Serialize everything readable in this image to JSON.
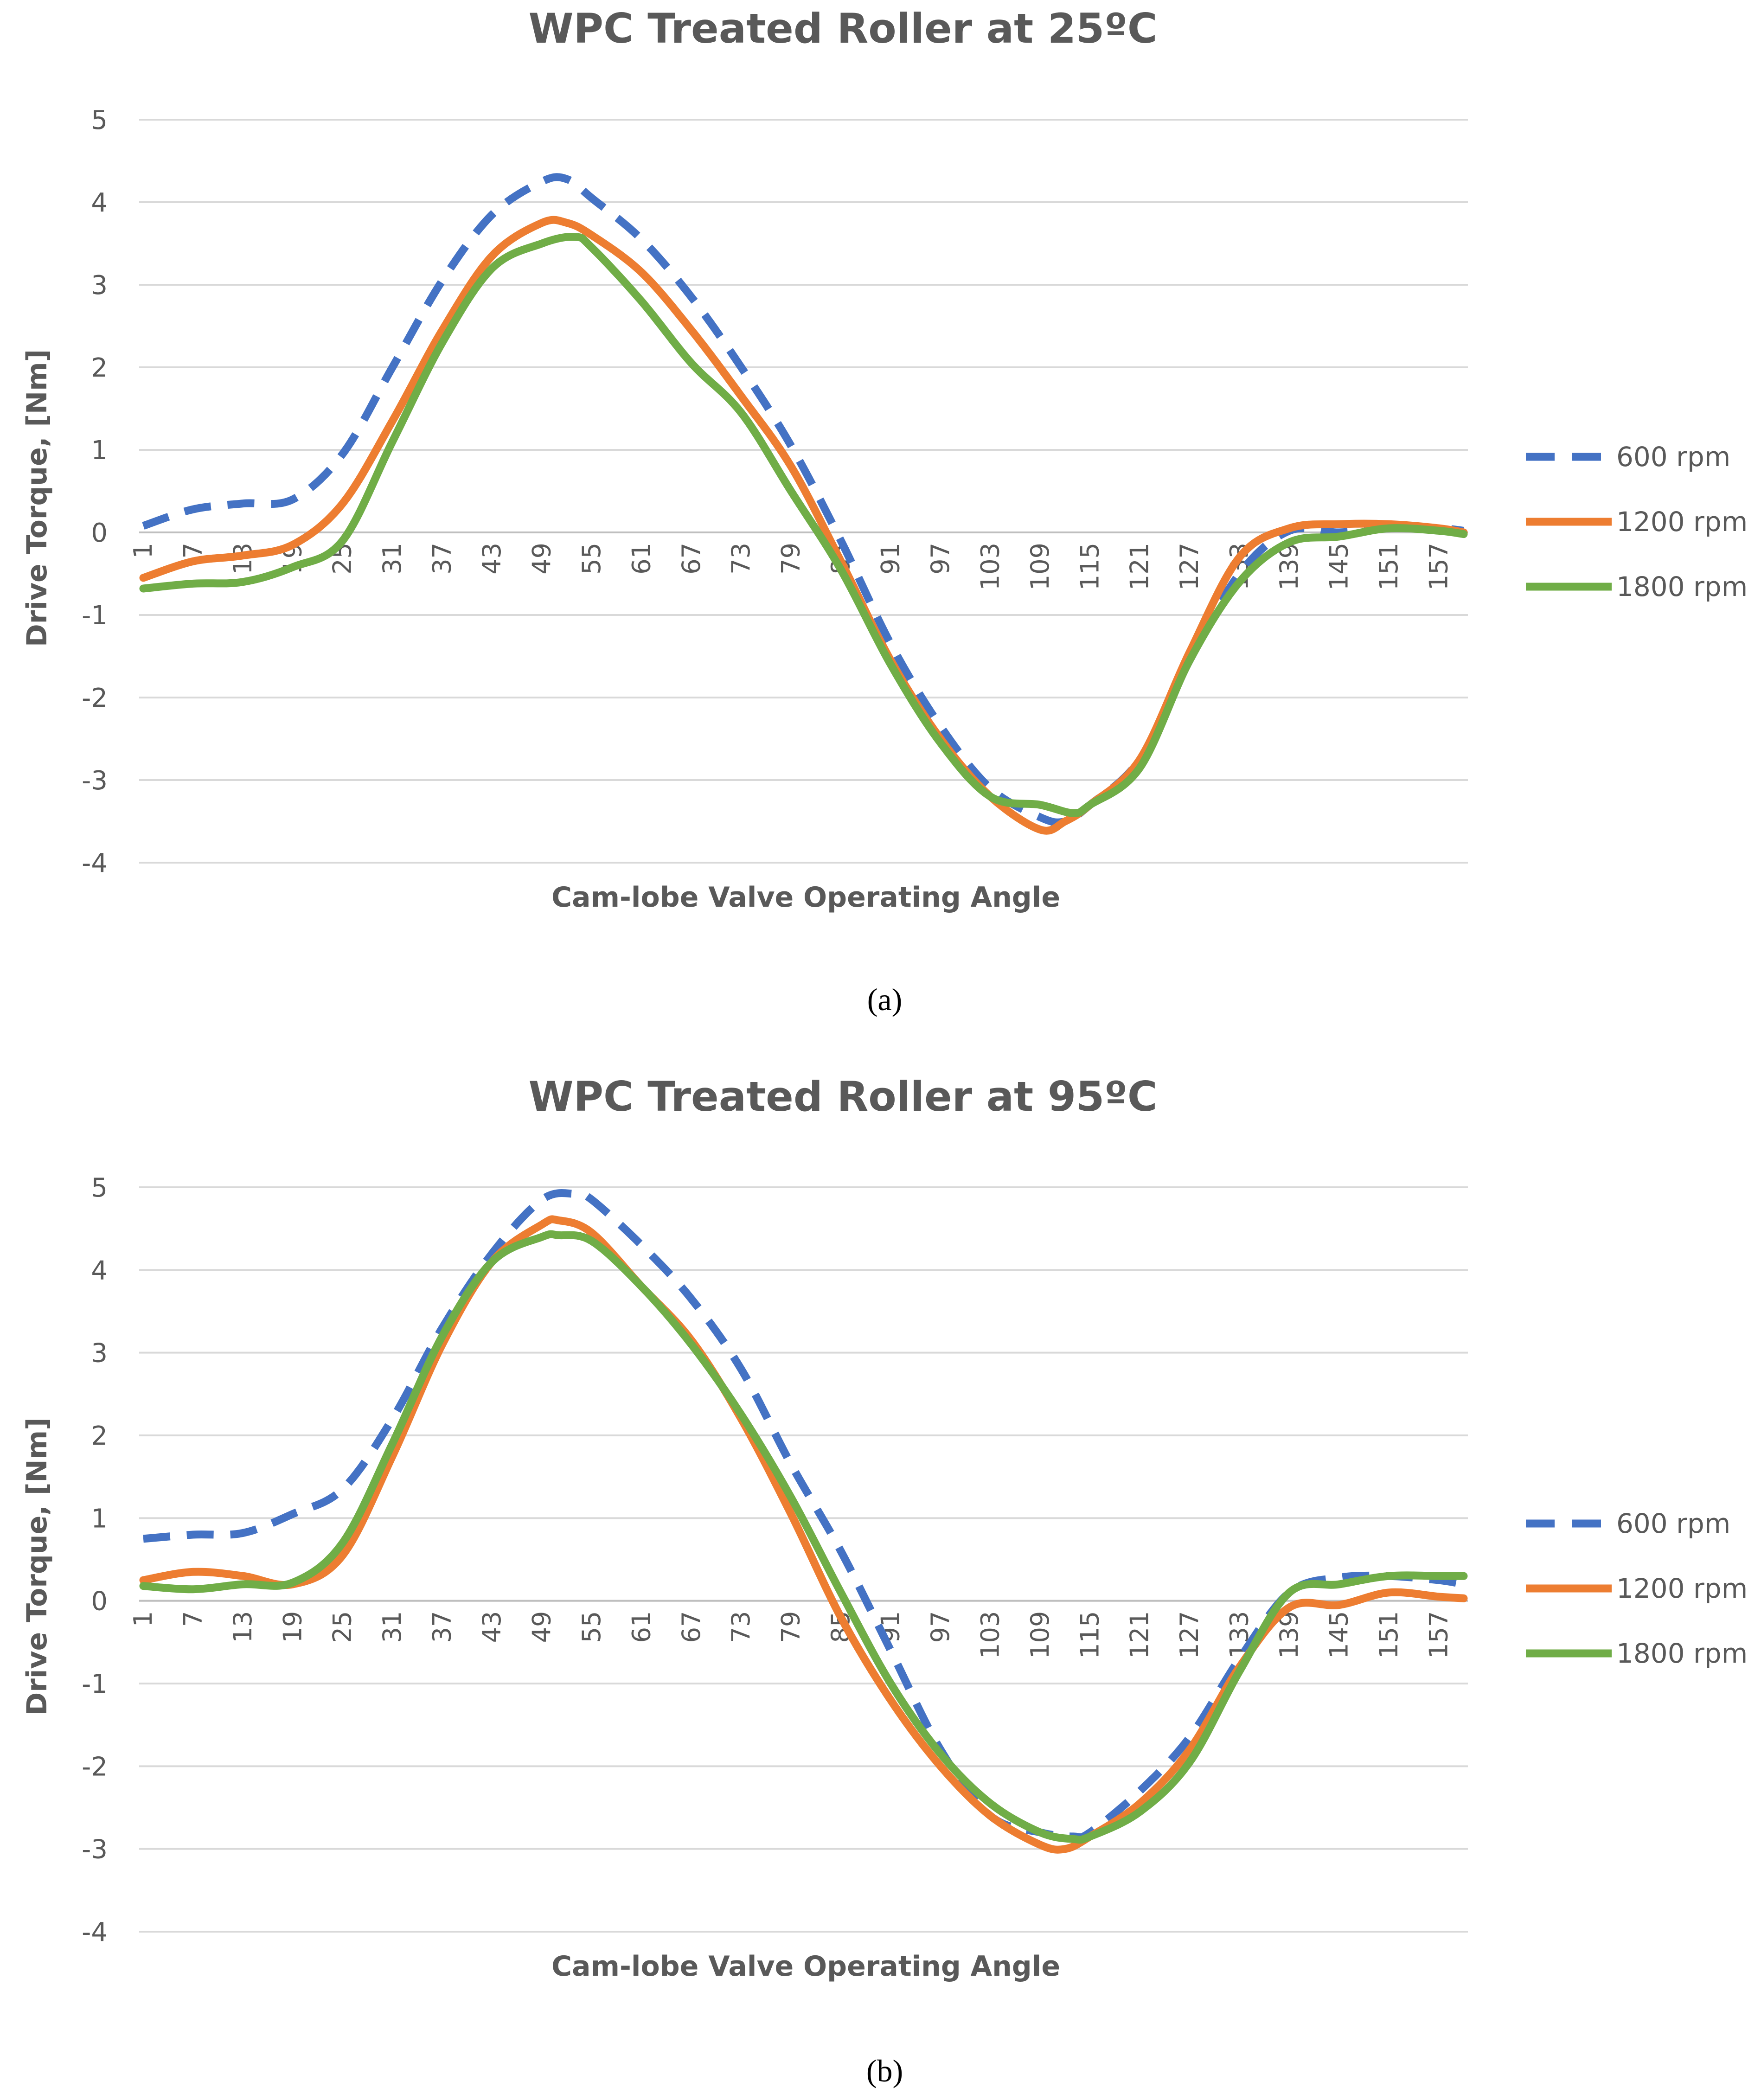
{
  "chart_data": [
    {
      "type": "line",
      "title": "WPC Treated Roller at 25ºC",
      "xlabel": "Cam-lobe Valve Operating Angle",
      "ylabel": "Drive Torque, [Nm]",
      "ylim": [
        -4,
        5
      ],
      "yticks": [
        "5",
        "4",
        "3",
        "2",
        "1",
        "0",
        "-1",
        "-2",
        "-3",
        "-4"
      ],
      "xlim": [
        1,
        160
      ],
      "xtick_labels": [
        "1",
        "7",
        "13",
        "19",
        "25",
        "31",
        "37",
        "43",
        "49",
        "55",
        "61",
        "67",
        "73",
        "79",
        "85",
        "91",
        "97",
        "103",
        "109",
        "115",
        "121",
        "127",
        "133",
        "139",
        "145",
        "151",
        "157"
      ],
      "grid": true,
      "legend": "right",
      "series": [
        {
          "name": "600 rpm",
          "color": "#4472C4",
          "style": "dashed",
          "x": [
            1,
            7,
            13,
            19,
            25,
            31,
            37,
            43,
            49,
            52,
            55,
            61,
            67,
            73,
            79,
            85,
            91,
            97,
            103,
            109,
            112,
            115,
            121,
            127,
            133,
            139,
            145,
            151,
            157,
            160
          ],
          "y": [
            0.08,
            0.28,
            0.35,
            0.4,
            0.95,
            2.0,
            3.05,
            3.85,
            4.25,
            4.28,
            4.05,
            3.55,
            2.85,
            2.0,
            1.05,
            -0.1,
            -1.35,
            -2.35,
            -3.1,
            -3.45,
            -3.5,
            -3.3,
            -2.75,
            -1.55,
            -0.5,
            0.02,
            0.0,
            0.05,
            0.05,
            0.02
          ]
        },
        {
          "name": "1200 rpm",
          "color": "#ED7D31",
          "style": "solid",
          "x": [
            1,
            7,
            13,
            19,
            25,
            31,
            37,
            43,
            49,
            52,
            55,
            61,
            67,
            73,
            79,
            85,
            91,
            97,
            103,
            109,
            112,
            115,
            121,
            127,
            133,
            139,
            145,
            151,
            157,
            160
          ],
          "y": [
            -0.55,
            -0.35,
            -0.28,
            -0.15,
            0.35,
            1.35,
            2.45,
            3.35,
            3.75,
            3.75,
            3.6,
            3.15,
            2.45,
            1.65,
            0.8,
            -0.35,
            -1.55,
            -2.5,
            -3.2,
            -3.6,
            -3.5,
            -3.3,
            -2.75,
            -1.45,
            -0.3,
            0.05,
            0.1,
            0.1,
            0.05,
            0.0
          ]
        },
        {
          "name": "1800 rpm",
          "color": "#70AD47",
          "style": "solid",
          "x": [
            1,
            7,
            13,
            19,
            25,
            31,
            37,
            43,
            49,
            53,
            55,
            61,
            67,
            73,
            79,
            85,
            91,
            97,
            103,
            109,
            113,
            115,
            121,
            127,
            133,
            139,
            145,
            151,
            157,
            160
          ],
          "y": [
            -0.68,
            -0.62,
            -0.6,
            -0.42,
            -0.1,
            1.1,
            2.3,
            3.2,
            3.5,
            3.58,
            3.45,
            2.8,
            2.05,
            1.45,
            0.5,
            -0.45,
            -1.6,
            -2.55,
            -3.2,
            -3.3,
            -3.4,
            -3.3,
            -2.85,
            -1.55,
            -0.6,
            -0.12,
            -0.05,
            0.05,
            0.02,
            -0.02
          ]
        }
      ]
    },
    {
      "type": "line",
      "title": "WPC Treated Roller at 95ºC",
      "xlabel": "Cam-lobe Valve Operating Angle",
      "ylabel": "Drive Torque, [Nm]",
      "ylim": [
        -4,
        5
      ],
      "yticks": [
        "5",
        "4",
        "3",
        "2",
        "1",
        "0",
        "-1",
        "-2",
        "-3",
        "-4"
      ],
      "xlim": [
        1,
        160
      ],
      "xtick_labels": [
        "1",
        "7",
        "13",
        "19",
        "25",
        "31",
        "37",
        "43",
        "49",
        "55",
        "61",
        "67",
        "73",
        "79",
        "85",
        "91",
        "97",
        "103",
        "109",
        "115",
        "121",
        "127",
        "133",
        "139",
        "145",
        "151",
        "157"
      ],
      "grid": true,
      "legend": "right",
      "series": [
        {
          "name": "600 rpm",
          "color": "#4472C4",
          "style": "dashed",
          "x": [
            1,
            7,
            13,
            19,
            25,
            31,
            37,
            43,
            49,
            53,
            55,
            61,
            67,
            73,
            79,
            85,
            91,
            97,
            103,
            109,
            113,
            115,
            121,
            127,
            133,
            139,
            145,
            151,
            157,
            160
          ],
          "y": [
            0.75,
            0.8,
            0.82,
            1.05,
            1.35,
            2.2,
            3.3,
            4.2,
            4.85,
            4.92,
            4.85,
            4.3,
            3.65,
            2.8,
            1.65,
            0.6,
            -0.6,
            -1.8,
            -2.6,
            -2.8,
            -2.85,
            -2.8,
            -2.3,
            -1.65,
            -0.7,
            0.1,
            0.28,
            0.3,
            0.25,
            0.2
          ]
        },
        {
          "name": "1200 rpm",
          "color": "#ED7D31",
          "style": "solid",
          "x": [
            1,
            7,
            13,
            19,
            25,
            31,
            37,
            43,
            49,
            51,
            55,
            61,
            67,
            73,
            79,
            85,
            91,
            97,
            103,
            109,
            112,
            115,
            121,
            127,
            133,
            139,
            145,
            151,
            157,
            160
          ],
          "y": [
            0.25,
            0.35,
            0.3,
            0.2,
            0.55,
            1.75,
            3.1,
            4.1,
            4.55,
            4.6,
            4.45,
            3.8,
            3.15,
            2.2,
            1.05,
            -0.2,
            -1.2,
            -2.0,
            -2.6,
            -2.95,
            -3.0,
            -2.85,
            -2.45,
            -1.8,
            -0.8,
            -0.08,
            -0.05,
            0.1,
            0.05,
            0.03
          ]
        },
        {
          "name": "1800 rpm",
          "color": "#70AD47",
          "style": "solid",
          "x": [
            1,
            7,
            13,
            19,
            25,
            31,
            37,
            43,
            49,
            51,
            55,
            61,
            67,
            73,
            79,
            85,
            91,
            97,
            103,
            109,
            113,
            115,
            121,
            127,
            133,
            139,
            145,
            151,
            157,
            160
          ],
          "y": [
            0.18,
            0.14,
            0.2,
            0.22,
            0.7,
            1.9,
            3.2,
            4.1,
            4.4,
            4.42,
            4.35,
            3.8,
            3.1,
            2.25,
            1.25,
            0.1,
            -1.0,
            -1.85,
            -2.45,
            -2.8,
            -2.88,
            -2.85,
            -2.55,
            -1.95,
            -0.85,
            0.1,
            0.2,
            0.3,
            0.3,
            0.3
          ]
        }
      ]
    }
  ],
  "captions": [
    "(a)",
    "(b)"
  ]
}
